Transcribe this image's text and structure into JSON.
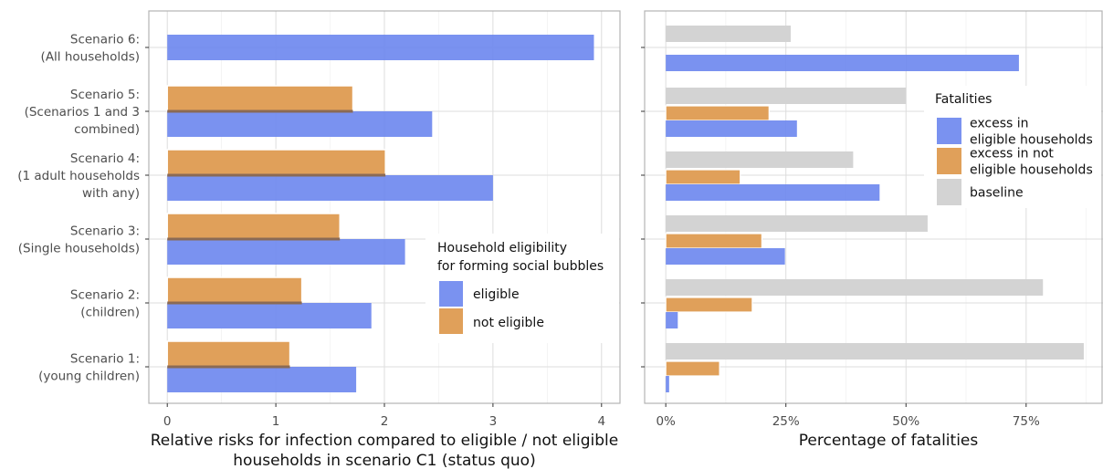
{
  "colors": {
    "eligible": "#6b86ee",
    "not_eligible": "#e0a05a",
    "baseline": "#d3d3d3",
    "grid_major": "#dddddd",
    "grid_minor": "#eeeeee",
    "panel_border": "#b3b3b3"
  },
  "chart_data": [
    {
      "type": "bar",
      "orientation": "horizontal",
      "categories": [
        "Scenario 6:\n(All households)",
        "Scenario 5:\n(Scenarios 1 and 3\ncombined)",
        "Scenario 4:\n(1 adult households\nwith any)",
        "Scenario 3:\n(Single households)",
        "Scenario 2:\n(children)",
        "Scenario 1:\n(young children)"
      ],
      "series": [
        {
          "name": "eligible",
          "values": [
            3.93,
            2.44,
            3.0,
            2.19,
            1.88,
            1.74
          ]
        },
        {
          "name": "not eligible",
          "values": [
            null,
            1.71,
            2.01,
            1.59,
            1.24,
            1.13
          ]
        }
      ],
      "xlabel": "Relative risks for infection compared to eligible / not eligible\nhouseholds in scenario C1 (status quo)",
      "ylabel": "",
      "xlim": [
        -0.17,
        4.17
      ],
      "xticks": [
        0,
        1,
        2,
        3,
        4
      ],
      "xtick_labels": [
        "0",
        "1",
        "2",
        "3",
        "4"
      ],
      "legend_title": "Household eligibility\nfor forming social bubbles",
      "legend_position": "center-right",
      "grid": true
    },
    {
      "type": "bar",
      "orientation": "horizontal",
      "categories": [
        "Scenario 6",
        "Scenario 5",
        "Scenario 4",
        "Scenario 3",
        "Scenario 2",
        "Scenario 1"
      ],
      "series": [
        {
          "name": "baseline",
          "values": [
            0.26,
            0.5,
            0.39,
            0.545,
            0.785,
            0.87
          ]
        },
        {
          "name": "excess in not eligible households",
          "values": [
            null,
            0.215,
            0.155,
            0.2,
            0.18,
            0.112
          ]
        },
        {
          "name": "excess in eligible households",
          "values": [
            0.735,
            0.273,
            0.445,
            0.248,
            0.025,
            0.007
          ]
        }
      ],
      "xlabel": "Percentage of fatalities",
      "xlim": [
        -0.044,
        0.91
      ],
      "xticks": [
        0,
        0.25,
        0.5,
        0.75
      ],
      "xtick_labels": [
        "0%",
        "25%",
        "50%",
        "75%"
      ],
      "legend_title": "Fatalities",
      "legend_entries": [
        {
          "key": "eligible",
          "label": "excess in\neligible households"
        },
        {
          "key": "not_eligible",
          "label": "excess in not\neligible households"
        },
        {
          "key": "baseline",
          "label": "baseline"
        }
      ],
      "legend_position": "top-right",
      "grid": true
    }
  ]
}
